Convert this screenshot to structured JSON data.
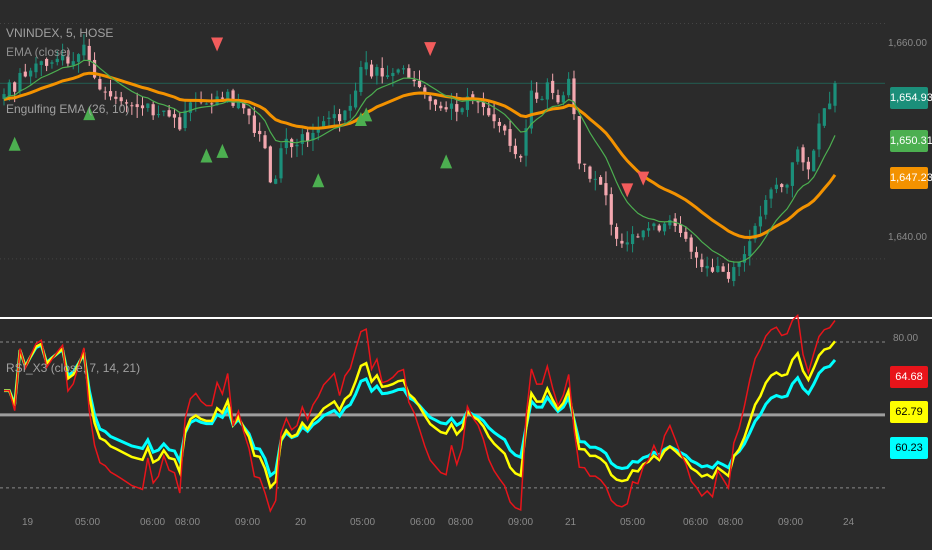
{
  "legend": {
    "line1": "VNINDEX, 5, HOSE",
    "line2": "EMA (close)",
    "line3": "Engulfing EMA (26, 10)",
    "rsi": "RSI_X3 (close, 7, 14, 21)"
  },
  "price_axis": {
    "ticks": [
      "1,660.00",
      "1,640.00"
    ],
    "tags": [
      {
        "label": "1,654.93",
        "color": "#1b8f7a",
        "text_color": "#ffffff"
      },
      {
        "label": "1,650.31",
        "color": "#4caf50",
        "text_color": "#ffffff"
      },
      {
        "label": "1,647.23",
        "color": "#f39200",
        "text_color": "#ffffff"
      }
    ]
  },
  "rsi_axis": {
    "ticks": [
      "80.00"
    ],
    "tags": [
      {
        "label": "64.68",
        "color": "#e8141a",
        "text_color": "#ffffff"
      },
      {
        "label": "62.79",
        "color": "#ffff00",
        "text_color": "#000000"
      },
      {
        "label": "60.23",
        "color": "#00ffff",
        "text_color": "#000000"
      }
    ]
  },
  "time_axis": [
    "19",
    "05:00",
    "06:00",
    "08:00",
    "09:00",
    "20",
    "05:00",
    "06:00",
    "08:00",
    "09:00",
    "21",
    "05:00",
    "06:00",
    "08:00",
    "09:00",
    "24"
  ],
  "colors": {
    "background": "#2b2b2b",
    "up": "#1b8f7a",
    "down": "#f4a8b0",
    "ema_fast": "#4caf50",
    "ema_slow": "#f39200",
    "buy_marker": "#4caf50",
    "sell_marker": "#f25c5c",
    "rsi7": "#e8141a",
    "rsi14": "#ffff00",
    "rsi21": "#00ffff",
    "midline": "#9e9e9e",
    "separator": "#ffffff"
  },
  "chart_data": [
    {
      "type": "candlestick",
      "title": "VNINDEX, 5, HOSE",
      "ylim": [
        1636.5,
        1662.0
      ],
      "y_ticks": [
        1660,
        1640
      ],
      "last_close": 1654.93,
      "ema_fast_last": 1650.31,
      "ema_slow_last": 1647.23,
      "series_close": [
        1654,
        1655,
        1654.2,
        1655.8,
        1655.5,
        1656,
        1656.6,
        1656.8,
        1656.4,
        1656.7,
        1657,
        1657.3,
        1656.6,
        1656.8,
        1657.4,
        1658.2,
        1656.8,
        1655.4,
        1654.4,
        1654.2,
        1653.8,
        1653.6,
        1653.4,
        1653.2,
        1653,
        1652.9,
        1652.8,
        1653.2,
        1652.2,
        1652.3,
        1652.6,
        1652.1,
        1652,
        1651,
        1652.6,
        1653.3,
        1653.5,
        1653.3,
        1653.2,
        1653.2,
        1653.8,
        1653.6,
        1654.2,
        1653,
        1653.4,
        1652.8,
        1652.2,
        1650.7,
        1650.6,
        1649.4,
        1646.5,
        1646.8,
        1649.4,
        1650.2,
        1649.5,
        1649.7,
        1650.6,
        1650,
        1650.7,
        1651.1,
        1651.7,
        1652,
        1652.3,
        1651.7,
        1652.6,
        1653,
        1654.3,
        1656.3,
        1656.7,
        1655.5,
        1656.3,
        1655.5,
        1655.6,
        1655.8,
        1656.1,
        1656.2,
        1655.4,
        1655.1,
        1654.6,
        1654,
        1653.4,
        1653.1,
        1652.8,
        1652.7,
        1653.2,
        1652.5,
        1652.8,
        1653.8,
        1653.5,
        1653.3,
        1652.9,
        1652.2,
        1651.7,
        1651.3,
        1650.9,
        1649.6,
        1648.9,
        1648.6,
        1651.1,
        1654.3,
        1653.6,
        1653.6,
        1655,
        1654.1,
        1653.3,
        1653.9,
        1655.3,
        1652.3,
        1648.1,
        1648,
        1646.8,
        1646.8,
        1646.3,
        1645.4,
        1642.9,
        1641.7,
        1641.3,
        1641.4,
        1642.1,
        1641.9,
        1642.4,
        1642.6,
        1643,
        1642.4,
        1643,
        1643.3,
        1642.8,
        1642.2,
        1641.7,
        1640.6,
        1640.1,
        1639.3,
        1639.4,
        1638.9,
        1639.4,
        1638.9,
        1638.3,
        1639.3,
        1639.7,
        1640.4,
        1641.5,
        1642.8,
        1643.6,
        1645,
        1645.9,
        1646.3,
        1646.1,
        1646.3,
        1648.2,
        1649.3,
        1648.2,
        1647.6,
        1649.2,
        1651.5,
        1652.8,
        1653.2,
        1654.9
      ],
      "buy_signals_idx": [
        2,
        16,
        38,
        41,
        59,
        67,
        68,
        83
      ],
      "sell_signals_idx": [
        15,
        40,
        80,
        117,
        120
      ]
    },
    {
      "type": "line",
      "title": "RSI_X3 (close, 7, 14, 21)",
      "ylim": [
        15,
        87
      ],
      "midline": 50,
      "bands": [
        80,
        20
      ],
      "series": [
        {
          "name": "7",
          "last": 64.68
        },
        {
          "name": "14",
          "last": 62.79
        },
        {
          "name": "21",
          "last": 60.23
        }
      ]
    }
  ]
}
